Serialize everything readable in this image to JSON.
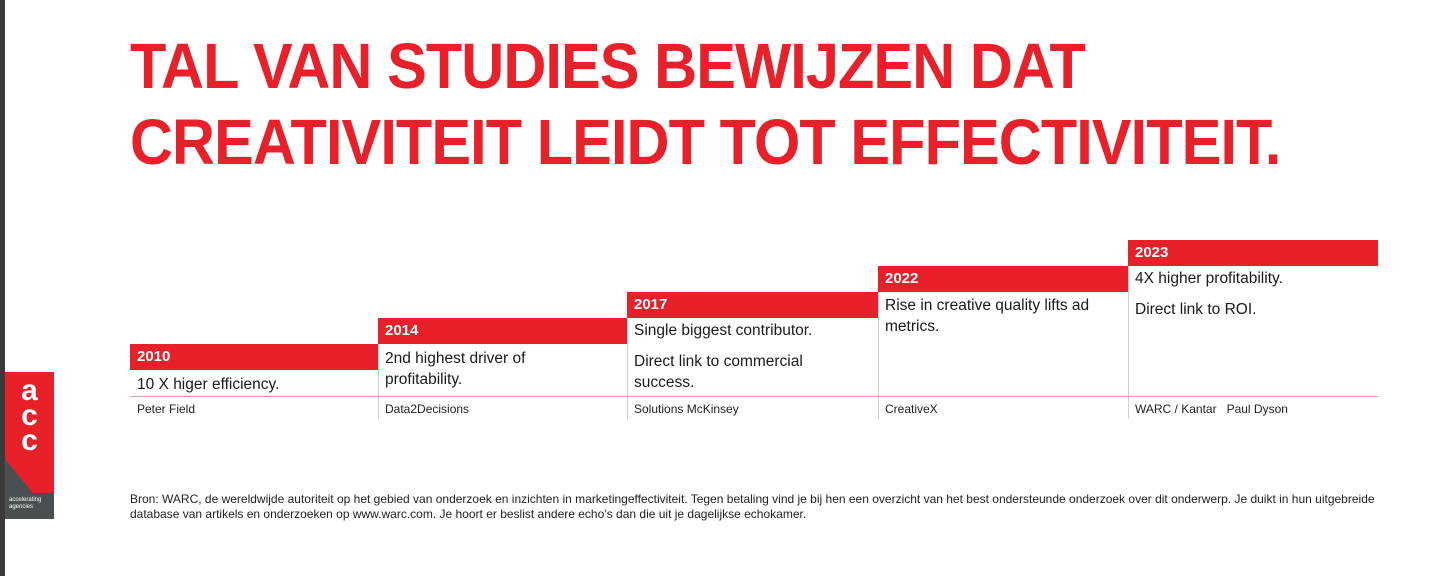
{
  "title": {
    "line1": "TAL VAN STUDIES BEWIJZEN DAT",
    "line2": "CREATIVITEIT LEIDT TOT EFFECTIVITEIT."
  },
  "timeline": [
    {
      "year": "2010",
      "lines": [
        "10 X higer efficiency."
      ],
      "source": "Peter Field"
    },
    {
      "year": "2014",
      "lines": [
        "2nd highest driver of profitability."
      ],
      "source": "Data2Decisions"
    },
    {
      "year": "2017",
      "lines": [
        "Single biggest contributor.",
        "Direct link to commercial success."
      ],
      "source": "Solutions McKinsey"
    },
    {
      "year": "2022",
      "lines": [
        "Rise in creative quality lifts ad metrics."
      ],
      "source": "CreativeX"
    },
    {
      "year": "2023",
      "lines": [
        "4X higher profitability.",
        "Direct link to ROI."
      ],
      "source": "WARC / Kantar   Paul Dyson"
    }
  ],
  "logo": {
    "letters": [
      "a",
      "c",
      "c"
    ],
    "tagline": "accelerating agencies",
    "accent": "#e8202a",
    "dark": "#4a4f52"
  },
  "footnote": "Bron: WARC, de wereldwijde autoriteit op het gebied van onderzoek en inzichten in marketingeffectiviteit. Tegen betaling vind je bij hen een overzicht van het best ondersteunde onderzoek over dit onderwerp. Je duikt in hun uitgebreide database van artikels en onderzoeken op www.warc.com. Je hoort er beslist andere echo’s dan die uit je dagelijkse echokamer."
}
